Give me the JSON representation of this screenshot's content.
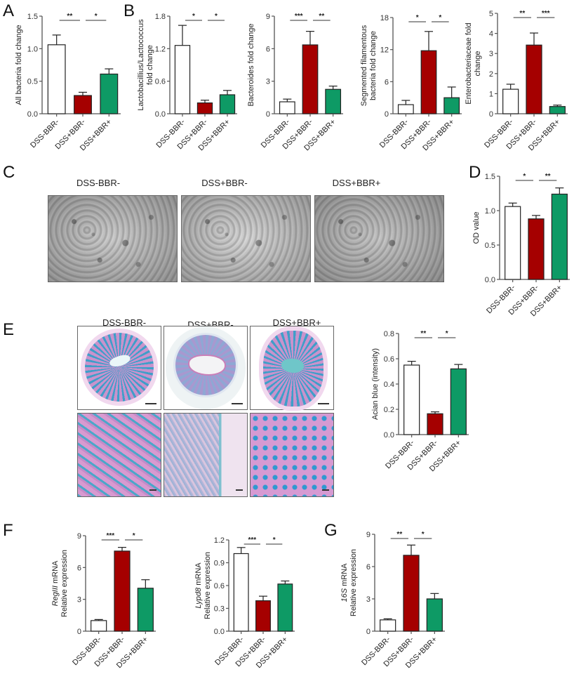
{
  "panels": {
    "A": "A",
    "B": "B",
    "C": "C",
    "D": "D",
    "E": "E",
    "F": "F",
    "G": "G"
  },
  "groups": [
    "DSS-BBR-",
    "DSS+BBR-",
    "DSS+BBR+"
  ],
  "colors": {
    "control": "#FFFFFF",
    "dss": "#A50000",
    "bbr": "#0E9A65",
    "axis": "#555555"
  },
  "micrographs_C": {
    "labels": [
      "DSS-BBR-",
      "DSS+BBR-",
      "DSS+BBR+"
    ]
  },
  "micrographs_E": {
    "labels": [
      "DSS-BBR-",
      "DSS+BBR-",
      "DSS+BBR+"
    ]
  },
  "chart_data": [
    {
      "id": "A",
      "type": "bar",
      "title": "",
      "ylabel": "All bacteria fold change",
      "categories": [
        "DSS-BBR-",
        "DSS+BBR-",
        "DSS+BBR+"
      ],
      "values": [
        1.06,
        0.28,
        0.61
      ],
      "errors": [
        0.15,
        0.05,
        0.08
      ],
      "ylim": [
        0,
        1.5
      ],
      "yticks": [
        "0.0",
        "0.5",
        "1.0",
        "1.5"
      ],
      "significance": [
        {
          "from": 0,
          "to": 1,
          "label": "**"
        },
        {
          "from": 1,
          "to": 2,
          "label": "*"
        }
      ]
    },
    {
      "id": "B1",
      "type": "bar",
      "title": "",
      "ylabel": "Lactobacillius/Lactococcus fold change",
      "categories": [
        "DSS-BBR-",
        "DSS+BBR-",
        "DSS+BBR+"
      ],
      "values": [
        1.26,
        0.2,
        0.35
      ],
      "errors": [
        0.37,
        0.05,
        0.08
      ],
      "ylim": [
        0,
        1.8
      ],
      "yticks": [
        "0.0",
        "0.6",
        "1.2",
        "1.8"
      ],
      "significance": [
        {
          "from": 0,
          "to": 1,
          "label": "*"
        },
        {
          "from": 1,
          "to": 2,
          "label": "*"
        }
      ]
    },
    {
      "id": "B2",
      "type": "bar",
      "title": "",
      "ylabel": "Bacteroides fold change",
      "categories": [
        "DSS-BBR-",
        "DSS+BBR-",
        "DSS+BBR+"
      ],
      "values": [
        1.1,
        6.35,
        2.25
      ],
      "errors": [
        0.25,
        1.25,
        0.3
      ],
      "ylim": [
        0,
        9
      ],
      "yticks": [
        "0",
        "3",
        "6",
        "9"
      ],
      "significance": [
        {
          "from": 0,
          "to": 1,
          "label": "***"
        },
        {
          "from": 1,
          "to": 2,
          "label": "**"
        }
      ]
    },
    {
      "id": "B3",
      "type": "bar",
      "title": "",
      "ylabel": "Segmented filamentous bacteria fold change",
      "categories": [
        "DSS-BBR-",
        "DSS+BBR-",
        "DSS+BBR+"
      ],
      "values": [
        1.7,
        11.8,
        3.0
      ],
      "errors": [
        0.8,
        3.6,
        2.0
      ],
      "ylim": [
        0,
        18
      ],
      "yticks": [
        "0",
        "6",
        "12",
        "18"
      ],
      "significance": [
        {
          "from": 0,
          "to": 1,
          "label": "*"
        },
        {
          "from": 1,
          "to": 2,
          "label": "*"
        }
      ]
    },
    {
      "id": "B4",
      "type": "bar",
      "title": "",
      "ylabel": "Enterobacteriaceae fold change",
      "categories": [
        "DSS-BBR-",
        "DSS+BBR-",
        "DSS+BBR+"
      ],
      "values": [
        1.22,
        3.42,
        0.36
      ],
      "errors": [
        0.25,
        0.6,
        0.07
      ],
      "ylim": [
        0,
        5
      ],
      "yticks": [
        "0",
        "1",
        "2",
        "3",
        "4",
        "5"
      ],
      "significance": [
        {
          "from": 0,
          "to": 1,
          "label": "**"
        },
        {
          "from": 1,
          "to": 2,
          "label": "***"
        }
      ]
    },
    {
      "id": "D",
      "type": "bar",
      "title": "",
      "ylabel": "OD value",
      "categories": [
        "DSS-BBR-",
        "DSS+BBR-",
        "DSS+BBR+"
      ],
      "values": [
        1.06,
        0.88,
        1.24
      ],
      "errors": [
        0.05,
        0.05,
        0.09
      ],
      "ylim": [
        0,
        1.5
      ],
      "yticks": [
        "0.0",
        "0.5",
        "1.0",
        "1.5"
      ],
      "significance": [
        {
          "from": 0,
          "to": 1,
          "label": "*"
        },
        {
          "from": 1,
          "to": 2,
          "label": "**"
        }
      ]
    },
    {
      "id": "E",
      "type": "bar",
      "title": "",
      "ylabel": "Acian blue (intensity)",
      "categories": [
        "DSS-BBR-",
        "DSS+BBR-",
        "DSS+BBR+"
      ],
      "values": [
        0.55,
        0.165,
        0.52
      ],
      "errors": [
        0.03,
        0.015,
        0.035
      ],
      "ylim": [
        0,
        0.8
      ],
      "yticks": [
        "0.0",
        "0.2",
        "0.4",
        "0.6",
        "0.8"
      ],
      "significance": [
        {
          "from": 0,
          "to": 1,
          "label": "**"
        },
        {
          "from": 1,
          "to": 2,
          "label": "*"
        }
      ]
    },
    {
      "id": "F1",
      "type": "bar",
      "title": "",
      "ylabel_italic": "RegIII",
      "ylabel": " mRNA",
      "ylabel2": "Relative expression",
      "categories": [
        "DSS-BBR-",
        "DSS+BBR-",
        "DSS+BBR+"
      ],
      "values": [
        1.0,
        7.55,
        4.05
      ],
      "errors": [
        0.1,
        0.35,
        0.8
      ],
      "ylim": [
        0,
        9
      ],
      "yticks": [
        "0",
        "3",
        "6",
        "9"
      ],
      "significance": [
        {
          "from": 0,
          "to": 1,
          "label": "***"
        },
        {
          "from": 1,
          "to": 2,
          "label": "*"
        }
      ]
    },
    {
      "id": "F2",
      "type": "bar",
      "title": "",
      "ylabel_italic": "Lypd8",
      "ylabel": " mRNA",
      "ylabel2": "Relative expression",
      "categories": [
        "DSS-BBR-",
        "DSS+BBR-",
        "DSS+BBR+"
      ],
      "values": [
        1.02,
        0.4,
        0.62
      ],
      "errors": [
        0.08,
        0.06,
        0.04
      ],
      "ylim": [
        0,
        1.2
      ],
      "yticks": [
        "0.0",
        "0.3",
        "0.6",
        "0.9",
        "1.2"
      ],
      "significance": [
        {
          "from": 0,
          "to": 1,
          "label": "***"
        },
        {
          "from": 1,
          "to": 2,
          "label": "*"
        }
      ]
    },
    {
      "id": "G",
      "type": "bar",
      "title": "",
      "ylabel_italic": "16S",
      "ylabel": " mRNA",
      "ylabel2": "Relative expression",
      "categories": [
        "DSS-BBR-",
        "DSS+BBR-",
        "DSS+BBR+"
      ],
      "values": [
        1.05,
        7.05,
        3.0
      ],
      "errors": [
        0.1,
        0.95,
        0.5
      ],
      "ylim": [
        0,
        9
      ],
      "yticks": [
        "0",
        "3",
        "6",
        "9"
      ],
      "significance": [
        {
          "from": 0,
          "to": 1,
          "label": "**"
        },
        {
          "from": 1,
          "to": 2,
          "label": "*"
        }
      ]
    }
  ]
}
